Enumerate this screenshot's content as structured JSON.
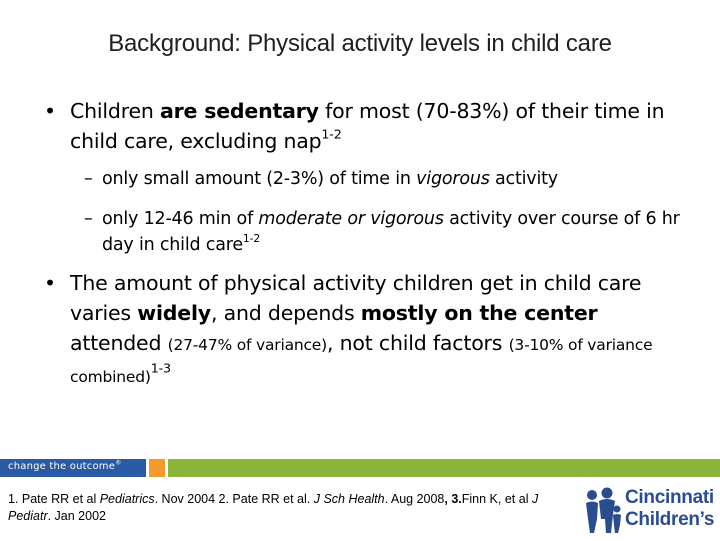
{
  "title": "Background: Physical activity levels in child care",
  "bullets": [
    {
      "p1": "Children ",
      "b1": "are sedentary",
      "p2": " for most (70-83%) of their time in child care, excluding nap",
      "sup": "1-2",
      "subs": [
        {
          "p1": "only small amount (2-3%) of time in ",
          "i1": "vigorous",
          "p2": " activity"
        },
        {
          "p1": "only 12-46 min of ",
          "i1": "moderate or vigorous",
          "p2": " activity over course of 6 hr day in child care",
          "sup": "1-2"
        }
      ]
    },
    {
      "p1": "The amount of physical activity children get in child care varies ",
      "b1": "widely",
      "p2": ", and depends ",
      "b2": "mostly on the center",
      "p3": " attended ",
      "small1": "(27-47% of variance)",
      "p4": ", not child factors ",
      "small2": "(3-10% of variance combined)",
      "sup": "1-3"
    }
  ],
  "band": {
    "tagline": "change the outcome",
    "tm": "®",
    "colors": {
      "blue": "#2a5aa5",
      "orange": "#f29b2c",
      "green": "#8cb33a"
    }
  },
  "refs": {
    "r1a": "1. Pate RR et al ",
    "r1j": "Pediatrics",
    "r1b": ". Nov 2004 2. Pate RR et al. ",
    "r2j": "J Sch Health",
    "r2b": ". Aug 2008",
    "r3n": ", 3.",
    "r3a": "Finn K, et al  ",
    "r3j": "J Pediatr",
    "r3b": ". Jan 2002"
  },
  "logo": {
    "line1": "Cincinnati",
    "line2": "Children’s",
    "icon": "family-figures-icon"
  }
}
